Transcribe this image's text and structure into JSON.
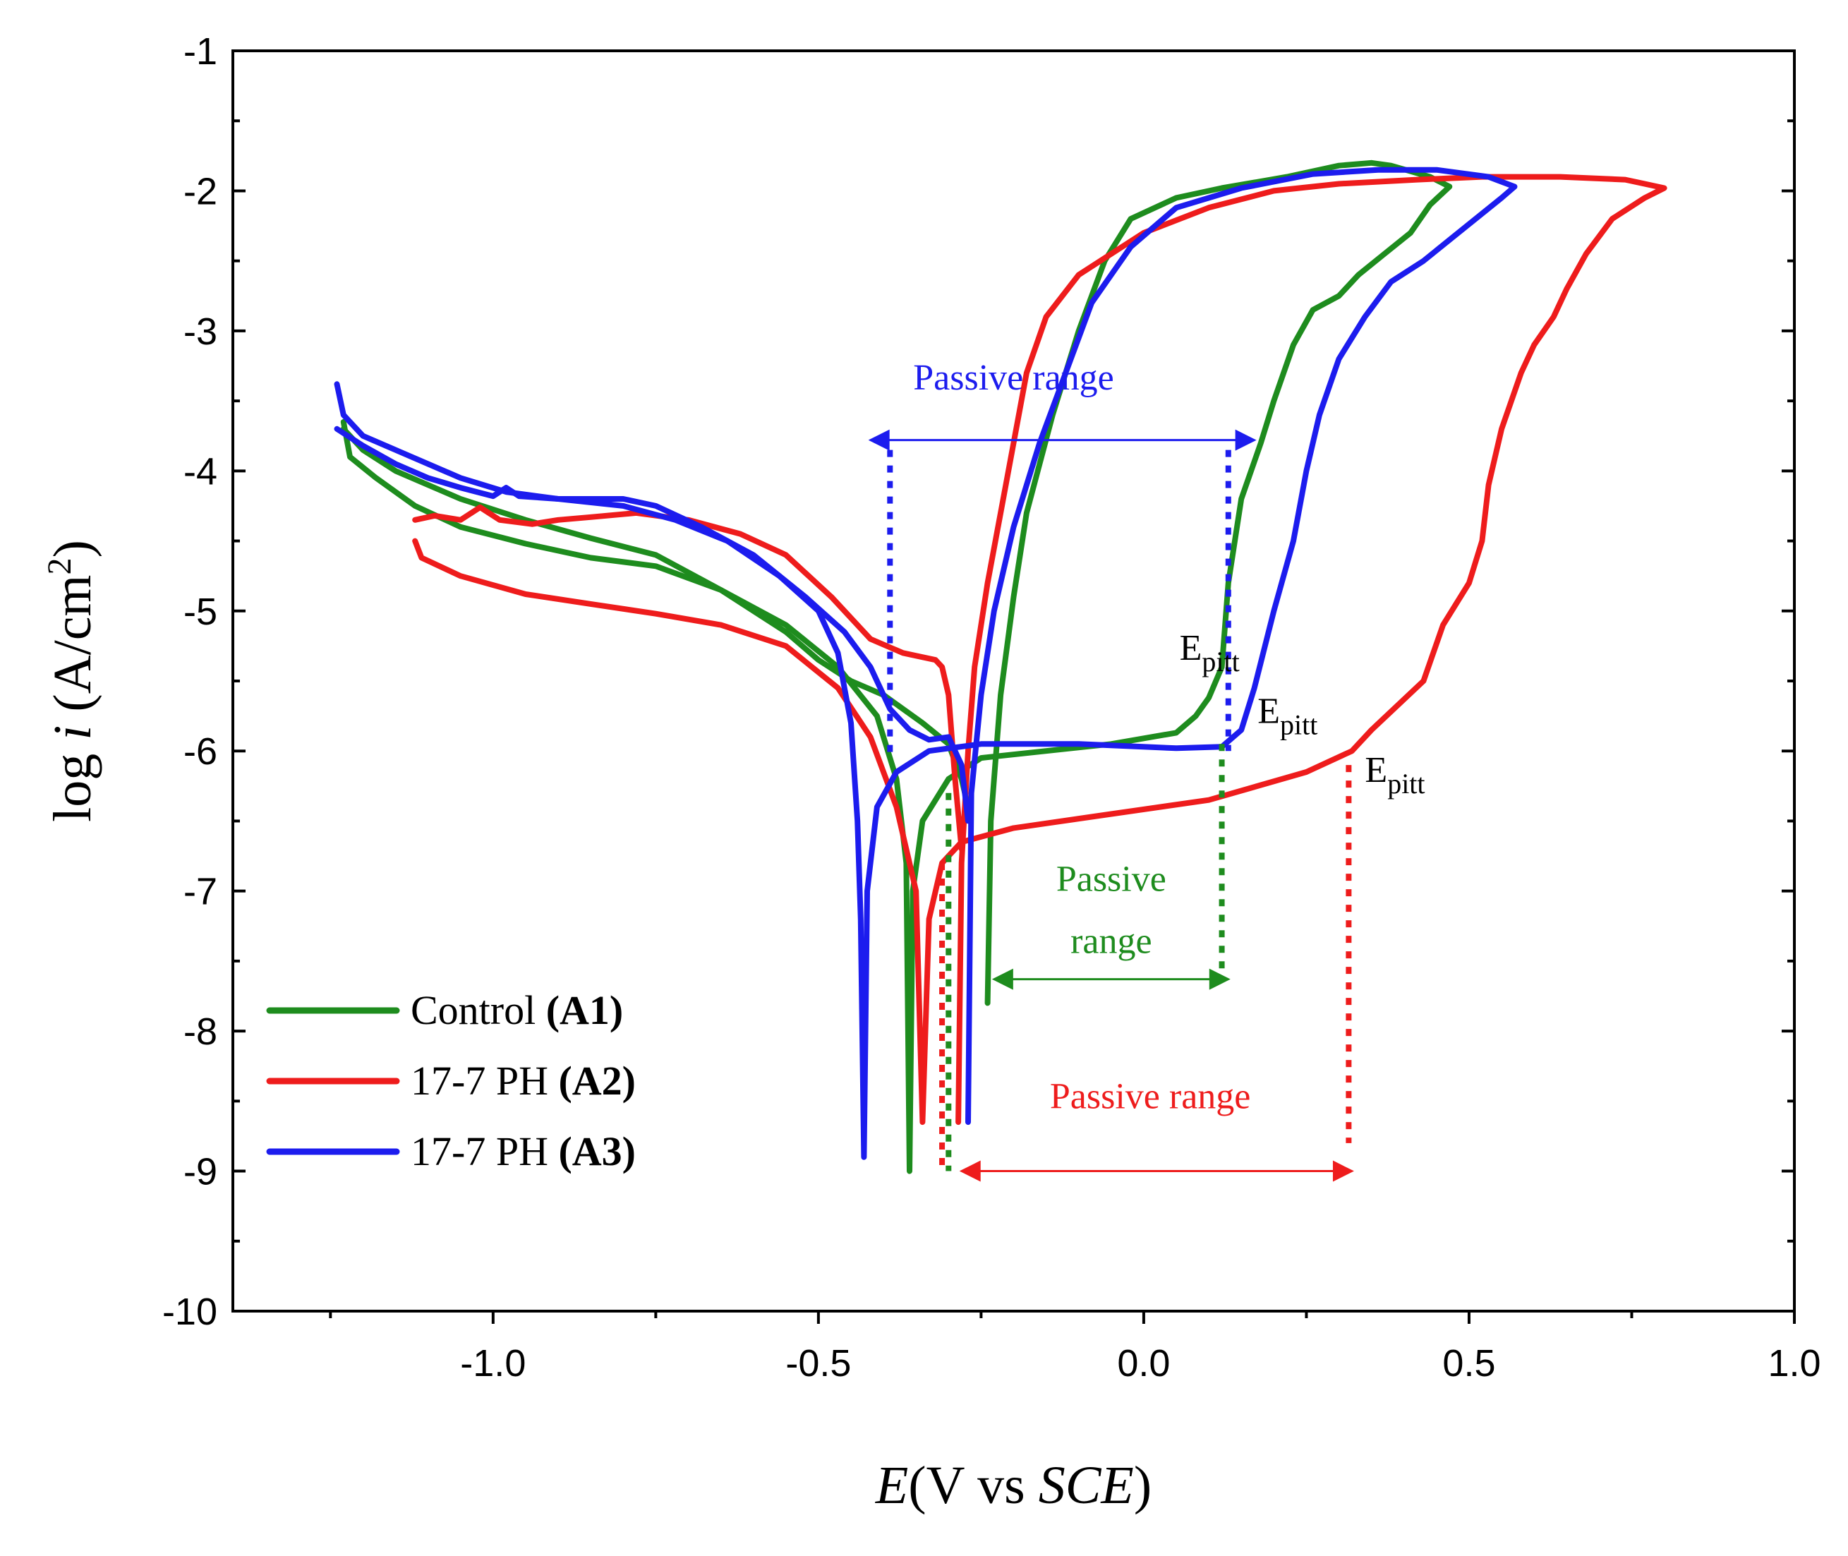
{
  "colors": {
    "A1": "#1e8c1e",
    "A2": "#ee1c1c",
    "A3": "#1c1cee",
    "axis": "#000000"
  },
  "chart_data": {
    "type": "line",
    "title": "",
    "xlabel": {
      "italic": "E",
      "rest": "(V vs ",
      "italic2": "SCE",
      "close": ")"
    },
    "ylabel": {
      "prefix": "log ",
      "italic": "i",
      "rest": " (A/cm",
      "sup": "2",
      "close": ")"
    },
    "xlim": [
      -1.4,
      1.0
    ],
    "ylim": [
      -10,
      -1
    ],
    "xticks": [
      {
        "value": -1.0,
        "label": "-1.0"
      },
      {
        "value": -0.5,
        "label": "-0.5"
      },
      {
        "value": 0.0,
        "label": "0.0"
      },
      {
        "value": 0.5,
        "label": "0.5"
      },
      {
        "value": 1.0,
        "label": "1.0"
      }
    ],
    "yticks": [
      {
        "value": -1,
        "label": "-1"
      },
      {
        "value": -2,
        "label": "-2"
      },
      {
        "value": -3,
        "label": "-3"
      },
      {
        "value": -4,
        "label": "-4"
      },
      {
        "value": -5,
        "label": "-5"
      },
      {
        "value": -6,
        "label": "-6"
      },
      {
        "value": -7,
        "label": "-7"
      },
      {
        "value": -8,
        "label": "-8"
      },
      {
        "value": -9,
        "label": "-9"
      },
      {
        "value": -10,
        "label": "-10"
      }
    ],
    "legend": {
      "placement": "bottom-left",
      "entries": [
        {
          "key": "A1",
          "name": "Control ",
          "bold": "(A1)"
        },
        {
          "key": "A2",
          "name": "17-7 PH ",
          "bold": "(A2)"
        },
        {
          "key": "A3",
          "name": "17-7 PH ",
          "bold": "(A3)"
        }
      ]
    },
    "series": [
      {
        "key": "A1",
        "name": "Control (A1)",
        "forward": [
          [
            -1.23,
            -3.65
          ],
          [
            -1.22,
            -3.9
          ],
          [
            -1.18,
            -4.05
          ],
          [
            -1.12,
            -4.25
          ],
          [
            -1.05,
            -4.4
          ],
          [
            -0.95,
            -4.52
          ],
          [
            -0.85,
            -4.62
          ],
          [
            -0.75,
            -4.68
          ],
          [
            -0.65,
            -4.85
          ],
          [
            -0.55,
            -5.1
          ],
          [
            -0.47,
            -5.4
          ],
          [
            -0.41,
            -5.75
          ],
          [
            -0.38,
            -6.2
          ],
          [
            -0.365,
            -6.8
          ],
          [
            -0.36,
            -9.0
          ],
          [
            -0.355,
            -7.0
          ],
          [
            -0.34,
            -6.5
          ],
          [
            -0.3,
            -6.2
          ],
          [
            -0.25,
            -6.05
          ],
          [
            -0.15,
            -6.0
          ],
          [
            -0.05,
            -5.95
          ],
          [
            0.05,
            -5.87
          ],
          [
            0.08,
            -5.75
          ],
          [
            0.1,
            -5.62
          ],
          [
            0.12,
            -5.4
          ],
          [
            0.13,
            -4.8
          ],
          [
            0.15,
            -4.2
          ],
          [
            0.18,
            -3.8
          ],
          [
            0.2,
            -3.5
          ],
          [
            0.23,
            -3.1
          ],
          [
            0.26,
            -2.85
          ],
          [
            0.3,
            -2.75
          ],
          [
            0.33,
            -2.6
          ],
          [
            0.37,
            -2.45
          ],
          [
            0.41,
            -2.3
          ],
          [
            0.44,
            -2.1
          ],
          [
            0.47,
            -1.97
          ],
          [
            0.44,
            -1.9
          ],
          [
            0.38,
            -1.82
          ],
          [
            0.35,
            -1.8
          ],
          [
            0.3,
            -1.82
          ],
          [
            0.22,
            -1.9
          ],
          [
            0.12,
            -1.98
          ],
          [
            0.05,
            -2.05
          ],
          [
            -0.02,
            -2.2
          ],
          [
            -0.06,
            -2.5
          ],
          [
            -0.1,
            -3.0
          ],
          [
            -0.14,
            -3.6
          ],
          [
            -0.18,
            -4.3
          ],
          [
            -0.2,
            -4.9
          ],
          [
            -0.22,
            -5.6
          ],
          [
            -0.235,
            -6.5
          ],
          [
            -0.24,
            -7.8
          ]
        ],
        "reverse": [
          [
            -1.23,
            -3.7
          ],
          [
            -1.2,
            -3.85
          ],
          [
            -1.15,
            -4.0
          ],
          [
            -1.05,
            -4.2
          ],
          [
            -0.95,
            -4.35
          ],
          [
            -0.85,
            -4.48
          ],
          [
            -0.75,
            -4.6
          ],
          [
            -0.65,
            -4.85
          ],
          [
            -0.55,
            -5.15
          ],
          [
            -0.5,
            -5.35
          ],
          [
            -0.45,
            -5.5
          ],
          [
            -0.4,
            -5.6
          ],
          [
            -0.34,
            -5.8
          ],
          [
            -0.3,
            -5.95
          ],
          [
            -0.28,
            -6.2
          ],
          [
            -0.27,
            -6.4
          ]
        ]
      },
      {
        "key": "A2",
        "name": "17-7 PH (A2)",
        "forward": [
          [
            -1.12,
            -4.5
          ],
          [
            -1.11,
            -4.62
          ],
          [
            -1.05,
            -4.75
          ],
          [
            -0.95,
            -4.88
          ],
          [
            -0.85,
            -4.95
          ],
          [
            -0.75,
            -5.02
          ],
          [
            -0.65,
            -5.1
          ],
          [
            -0.55,
            -5.25
          ],
          [
            -0.47,
            -5.55
          ],
          [
            -0.42,
            -5.9
          ],
          [
            -0.38,
            -6.4
          ],
          [
            -0.35,
            -7.0
          ],
          [
            -0.34,
            -8.65
          ],
          [
            -0.33,
            -7.2
          ],
          [
            -0.31,
            -6.8
          ],
          [
            -0.28,
            -6.65
          ],
          [
            -0.2,
            -6.55
          ],
          [
            -0.05,
            -6.45
          ],
          [
            0.1,
            -6.35
          ],
          [
            0.25,
            -6.15
          ],
          [
            0.32,
            -6.0
          ],
          [
            0.35,
            -5.85
          ],
          [
            0.43,
            -5.5
          ],
          [
            0.46,
            -5.1
          ],
          [
            0.5,
            -4.8
          ],
          [
            0.52,
            -4.5
          ],
          [
            0.53,
            -4.1
          ],
          [
            0.55,
            -3.7
          ],
          [
            0.58,
            -3.3
          ],
          [
            0.6,
            -3.1
          ],
          [
            0.63,
            -2.9
          ],
          [
            0.65,
            -2.7
          ],
          [
            0.68,
            -2.45
          ],
          [
            0.72,
            -2.2
          ],
          [
            0.77,
            -2.05
          ],
          [
            0.8,
            -1.98
          ],
          [
            0.74,
            -1.92
          ],
          [
            0.64,
            -1.9
          ],
          [
            0.52,
            -1.9
          ],
          [
            0.42,
            -1.92
          ],
          [
            0.3,
            -1.95
          ],
          [
            0.2,
            -2.0
          ],
          [
            0.1,
            -2.12
          ],
          [
            0.0,
            -2.3
          ],
          [
            -0.1,
            -2.6
          ],
          [
            -0.15,
            -2.9
          ],
          [
            -0.18,
            -3.3
          ],
          [
            -0.2,
            -3.8
          ],
          [
            -0.22,
            -4.3
          ],
          [
            -0.24,
            -4.8
          ],
          [
            -0.26,
            -5.4
          ],
          [
            -0.27,
            -6.0
          ],
          [
            -0.28,
            -6.8
          ],
          [
            -0.285,
            -8.65
          ]
        ],
        "reverse": [
          [
            -1.12,
            -4.35
          ],
          [
            -1.09,
            -4.32
          ],
          [
            -1.05,
            -4.35
          ],
          [
            -1.02,
            -4.26
          ],
          [
            -0.99,
            -4.35
          ],
          [
            -0.94,
            -4.38
          ],
          [
            -0.9,
            -4.35
          ],
          [
            -0.85,
            -4.33
          ],
          [
            -0.78,
            -4.3
          ],
          [
            -0.7,
            -4.35
          ],
          [
            -0.62,
            -4.45
          ],
          [
            -0.55,
            -4.6
          ],
          [
            -0.48,
            -4.9
          ],
          [
            -0.42,
            -5.2
          ],
          [
            -0.37,
            -5.3
          ],
          [
            -0.32,
            -5.35
          ],
          [
            -0.31,
            -5.4
          ],
          [
            -0.3,
            -5.6
          ],
          [
            -0.29,
            -6.2
          ],
          [
            -0.28,
            -6.7
          ]
        ]
      },
      {
        "key": "A3",
        "name": "17-7 PH (A3)",
        "forward": [
          [
            -1.24,
            -3.38
          ],
          [
            -1.23,
            -3.6
          ],
          [
            -1.2,
            -3.75
          ],
          [
            -1.15,
            -3.85
          ],
          [
            -1.1,
            -3.95
          ],
          [
            -1.05,
            -4.05
          ],
          [
            -0.98,
            -4.15
          ],
          [
            -0.9,
            -4.2
          ],
          [
            -0.8,
            -4.25
          ],
          [
            -0.72,
            -4.35
          ],
          [
            -0.64,
            -4.5
          ],
          [
            -0.56,
            -4.75
          ],
          [
            -0.5,
            -5.0
          ],
          [
            -0.47,
            -5.3
          ],
          [
            -0.45,
            -5.8
          ],
          [
            -0.44,
            -6.5
          ],
          [
            -0.435,
            -7.2
          ],
          [
            -0.43,
            -8.9
          ],
          [
            -0.425,
            -7.0
          ],
          [
            -0.41,
            -6.4
          ],
          [
            -0.38,
            -6.15
          ],
          [
            -0.33,
            -6.0
          ],
          [
            -0.25,
            -5.95
          ],
          [
            -0.1,
            -5.95
          ],
          [
            0.05,
            -5.98
          ],
          [
            0.12,
            -5.97
          ],
          [
            0.15,
            -5.85
          ],
          [
            0.17,
            -5.55
          ],
          [
            0.2,
            -5.0
          ],
          [
            0.23,
            -4.5
          ],
          [
            0.25,
            -4.0
          ],
          [
            0.27,
            -3.6
          ],
          [
            0.3,
            -3.2
          ],
          [
            0.34,
            -2.9
          ],
          [
            0.38,
            -2.65
          ],
          [
            0.43,
            -2.5
          ],
          [
            0.47,
            -2.35
          ],
          [
            0.51,
            -2.2
          ],
          [
            0.55,
            -2.05
          ],
          [
            0.57,
            -1.97
          ],
          [
            0.53,
            -1.9
          ],
          [
            0.45,
            -1.85
          ],
          [
            0.36,
            -1.85
          ],
          [
            0.26,
            -1.88
          ],
          [
            0.15,
            -1.98
          ],
          [
            0.05,
            -2.12
          ],
          [
            -0.02,
            -2.4
          ],
          [
            -0.08,
            -2.8
          ],
          [
            -0.12,
            -3.3
          ],
          [
            -0.16,
            -3.8
          ],
          [
            -0.2,
            -4.4
          ],
          [
            -0.23,
            -5.0
          ],
          [
            -0.25,
            -5.6
          ],
          [
            -0.265,
            -6.3
          ],
          [
            -0.27,
            -8.65
          ]
        ],
        "reverse": [
          [
            -1.24,
            -3.7
          ],
          [
            -1.2,
            -3.82
          ],
          [
            -1.15,
            -3.95
          ],
          [
            -1.1,
            -4.05
          ],
          [
            -1.05,
            -4.12
          ],
          [
            -1.0,
            -4.18
          ],
          [
            -0.98,
            -4.12
          ],
          [
            -0.96,
            -4.18
          ],
          [
            -0.9,
            -4.2
          ],
          [
            -0.8,
            -4.2
          ],
          [
            -0.75,
            -4.25
          ],
          [
            -0.68,
            -4.4
          ],
          [
            -0.6,
            -4.6
          ],
          [
            -0.52,
            -4.9
          ],
          [
            -0.46,
            -5.15
          ],
          [
            -0.42,
            -5.4
          ],
          [
            -0.39,
            -5.7
          ],
          [
            -0.36,
            -5.85
          ],
          [
            -0.33,
            -5.92
          ],
          [
            -0.3,
            -5.9
          ],
          [
            -0.28,
            -6.1
          ],
          [
            -0.27,
            -6.5
          ]
        ]
      }
    ],
    "annotations": [
      {
        "id": "passive-a3",
        "key": "A3",
        "text": "Passive range",
        "label_at": [
          -0.2,
          -3.42
        ],
        "arrow": {
          "from": [
            -0.42,
            -3.78
          ],
          "to": [
            0.17,
            -3.78
          ]
        },
        "verticals": [
          {
            "x": -0.39,
            "y1": -3.85,
            "y2": -6.05
          },
          {
            "x": 0.13,
            "y1": -3.85,
            "y2": -6.0
          }
        ]
      },
      {
        "id": "passive-a1",
        "key": "A1",
        "text_lines": [
          "Passive",
          "range"
        ],
        "label_at": [
          -0.05,
          -7.0
        ],
        "arrow": {
          "from": [
            -0.23,
            -7.63
          ],
          "to": [
            0.13,
            -7.63
          ]
        },
        "verticals": [
          {
            "x": -0.3,
            "y1": -6.3,
            "y2": -9.0
          },
          {
            "x": 0.12,
            "y1": -5.95,
            "y2": -7.6
          }
        ]
      },
      {
        "id": "passive-a2",
        "key": "A2",
        "text": "Passive range",
        "label_at": [
          0.01,
          -8.55
        ],
        "arrow": {
          "from": [
            -0.28,
            -9.0
          ],
          "to": [
            0.32,
            -9.0
          ]
        },
        "verticals": [
          {
            "x": -0.31,
            "y1": -6.8,
            "y2": -9.0
          },
          {
            "x": 0.315,
            "y1": -6.1,
            "y2": -8.8
          }
        ]
      },
      {
        "id": "epitt-a1",
        "text": "E",
        "sub": "pitt",
        "at": [
          0.055,
          -5.35
        ]
      },
      {
        "id": "epitt-a3",
        "text": "E",
        "sub": "pitt",
        "at": [
          0.175,
          -5.8
        ]
      },
      {
        "id": "epitt-a2",
        "text": "E",
        "sub": "pitt",
        "at": [
          0.34,
          -6.22
        ]
      }
    ]
  }
}
